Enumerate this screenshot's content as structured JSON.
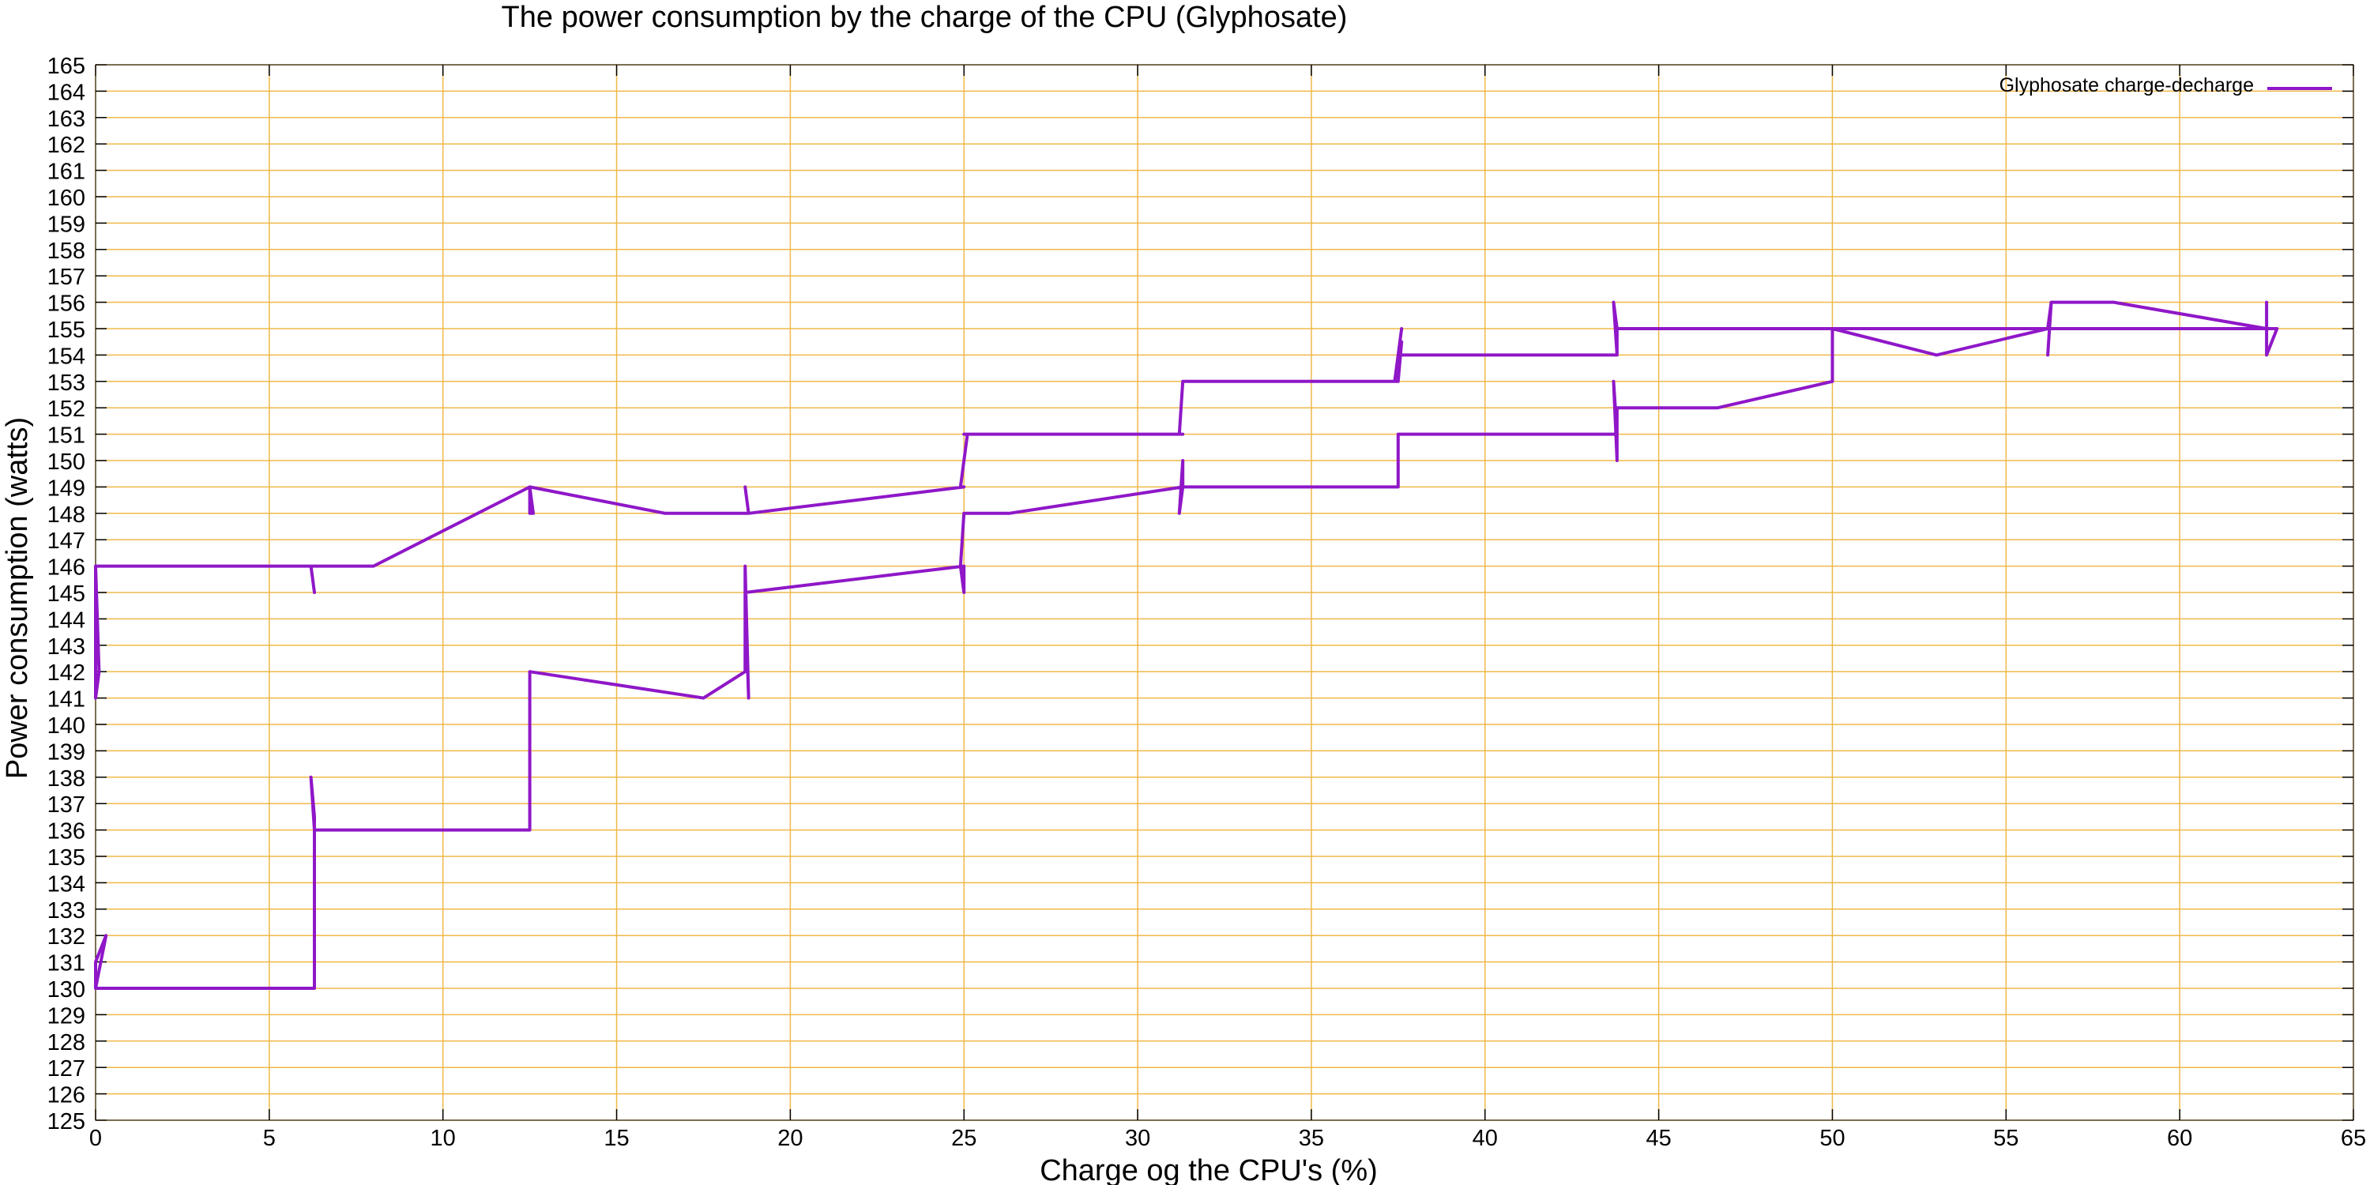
{
  "chart_data": {
    "type": "line",
    "title": "The power consumption by the charge of the CPU (Glyphosate)",
    "xlabel": "Charge og the CPU's (%)",
    "ylabel": "Power consumption (watts)",
    "xlim": [
      0,
      65
    ],
    "ylim": [
      125,
      165
    ],
    "xticks": [
      0,
      5,
      10,
      15,
      20,
      25,
      30,
      35,
      40,
      45,
      50,
      55,
      60,
      65
    ],
    "yticks": [
      125,
      126,
      127,
      128,
      129,
      130,
      131,
      132,
      133,
      134,
      135,
      136,
      137,
      138,
      139,
      140,
      141,
      142,
      143,
      144,
      145,
      146,
      147,
      148,
      149,
      150,
      151,
      152,
      153,
      154,
      155,
      156,
      157,
      158,
      159,
      160,
      161,
      162,
      163,
      164,
      165
    ],
    "grid": true,
    "legend_position": "top-right",
    "colors": {
      "grid": "#f0b84a",
      "series": "#8f17c8",
      "axis": "#000000"
    },
    "series": [
      {
        "name": "Glyphosate charge-decharge",
        "x": [
          0.0,
          0.0,
          0.3,
          0.0,
          0.0,
          0.1,
          0.0,
          6.3,
          6.3,
          6.2,
          6.3,
          6.3,
          12.5,
          12.5,
          12.5,
          17.5,
          18.7,
          18.7,
          18.8,
          18.7,
          18.7,
          25.0,
          25.0,
          24.9,
          25.0,
          25.0,
          26.3,
          31.3,
          31.3,
          31.2,
          31.3,
          31.3,
          37.5,
          37.5,
          37.5,
          43.8,
          43.8,
          43.7,
          43.8,
          43.8,
          46.7,
          50.0,
          50.0,
          53.0,
          56.2,
          56.3,
          56.2,
          56.3,
          58.1,
          62.5,
          62.5,
          62.5,
          62.8,
          62.5,
          59.3,
          56.2,
          56.2,
          56.3,
          56.2,
          50.0,
          43.8,
          43.8,
          43.7,
          43.8,
          43.8,
          37.5,
          37.6,
          37.4,
          37.6,
          37.5,
          37.5,
          31.3,
          31.2,
          31.3,
          31.3,
          25.0,
          25.0,
          25.1,
          24.9,
          25.0,
          18.8,
          18.7,
          18.8,
          18.7,
          16.4,
          12.5,
          12.6,
          12.5,
          12.5,
          8.0,
          6.2,
          6.3,
          6.2,
          6.2,
          0.0,
          0.0,
          0.1,
          0.0
        ],
        "y": [
          130,
          131,
          132,
          130,
          130,
          130,
          130,
          130,
          136,
          138,
          136.5,
          136,
          136,
          142,
          142,
          141,
          142,
          146,
          141,
          145,
          145,
          146,
          145,
          146,
          148,
          148,
          148,
          149,
          150,
          148,
          149,
          149,
          149,
          151,
          151,
          151,
          150,
          153,
          151,
          152,
          152,
          153,
          155,
          154,
          155,
          156,
          154,
          156,
          156,
          155,
          156,
          154,
          155,
          155,
          155,
          155,
          155,
          156,
          155,
          155,
          155,
          154,
          156,
          155,
          154,
          154,
          155,
          153,
          154.5,
          153,
          153,
          153,
          151,
          151,
          151,
          151,
          151,
          151,
          149,
          149,
          148,
          149,
          148,
          148,
          148,
          149,
          148,
          148,
          149,
          146,
          146,
          145,
          146,
          146,
          146,
          141,
          142,
          146
        ]
      }
    ]
  }
}
